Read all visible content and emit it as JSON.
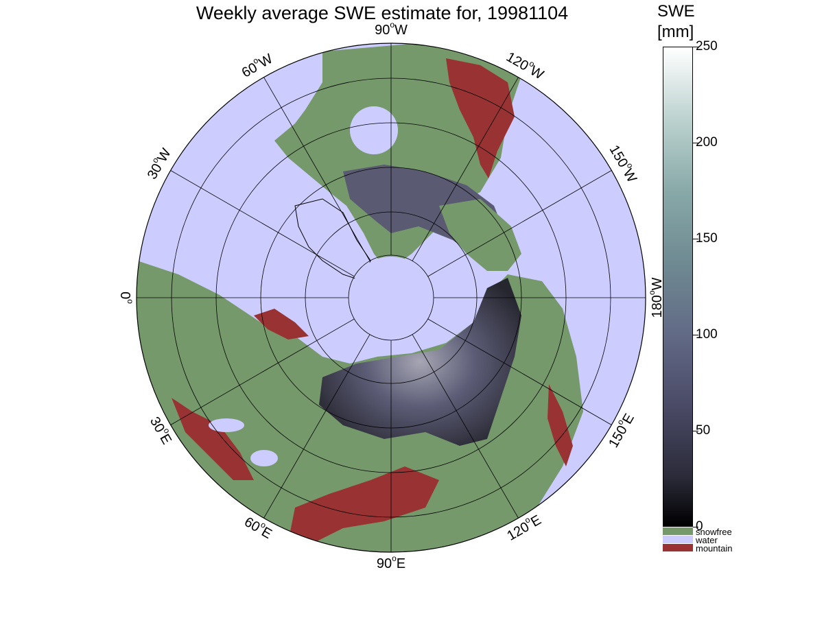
{
  "title": "Weekly average SWE estimate for, 19981104",
  "colorbar": {
    "title_line1": "SWE",
    "title_line2": "[mm]",
    "ticks": [
      {
        "label": "250",
        "value": 250
      },
      {
        "label": "200",
        "value": 200
      },
      {
        "label": "150",
        "value": 150
      },
      {
        "label": "100",
        "value": 100
      },
      {
        "label": "50",
        "value": 50
      },
      {
        "label": "0",
        "value": 0
      }
    ],
    "min": 0,
    "max": 250,
    "colormap": [
      "#000000",
      "#2a2a38",
      "#4a4a66",
      "#626a86",
      "#6f8a92",
      "#88a9a8",
      "#bcd2cf",
      "#ffffff"
    ]
  },
  "legend": [
    {
      "label": "snowfree",
      "color": "#75996b"
    },
    {
      "label": "water",
      "color": "#ccccff"
    },
    {
      "label": "mountain",
      "color": "#993333"
    }
  ],
  "map": {
    "projection": "north polar stereographic",
    "longitude_labels": [
      {
        "deg": "0",
        "suffix": ""
      },
      {
        "deg": "30",
        "suffix": "E"
      },
      {
        "deg": "60",
        "suffix": "E"
      },
      {
        "deg": "90",
        "suffix": "E"
      },
      {
        "deg": "120",
        "suffix": "E"
      },
      {
        "deg": "150",
        "suffix": "E"
      },
      {
        "deg": "180",
        "suffix": "W"
      },
      {
        "deg": "150",
        "suffix": "W"
      },
      {
        "deg": "120",
        "suffix": "W"
      },
      {
        "deg": "90",
        "suffix": "W"
      },
      {
        "deg": "60",
        "suffix": "W"
      },
      {
        "deg": "30",
        "suffix": "W"
      }
    ],
    "colors": {
      "ocean": "#ccccff",
      "land_snowfree": "#75996b",
      "mountain": "#993333",
      "snow_low": "#2a2a38",
      "snow_mid": "#5a5a72",
      "snow_high": "#9a9aa8",
      "grid": "#000000"
    }
  }
}
